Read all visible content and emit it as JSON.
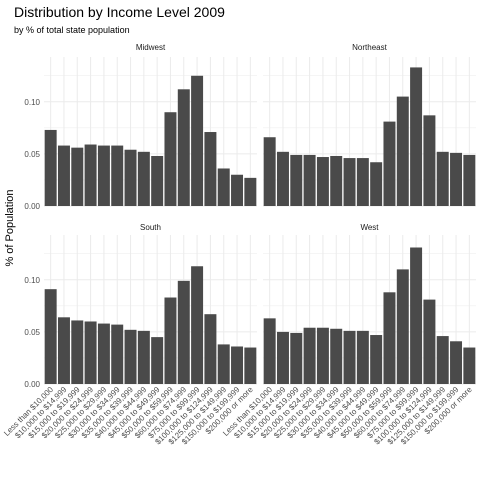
{
  "chart_data": {
    "type": "bar",
    "title": "Distribution by Income Level 2009",
    "subtitle": "by % of total state population",
    "xlabel": "",
    "ylabel": "% of Population",
    "ylim": [
      0,
      0.143
    ],
    "yticks": [
      "0.00",
      "0.05",
      "0.10"
    ],
    "grid": true,
    "bar_color": "#4a4a4a",
    "grid_color": "#ebebeb",
    "categories": [
      "Less than $10,000",
      "$10,000 to $14,999",
      "$15,000 to $19,999",
      "$20,000 to $24,999",
      "$25,000 to $29,999",
      "$30,000 to $34,999",
      "$35,000 to $39,999",
      "$40,000 to $44,999",
      "$45,000 to $49,999",
      "$50,000 to $59,999",
      "$60,000 to $74,999",
      "$75,000 to $99,999",
      "$100,000 to $124,999",
      "$125,000 to $149,999",
      "$150,000 to $199,999",
      "$200,000 or more"
    ],
    "panels": [
      {
        "name": "Midwest",
        "values": [
          0.073,
          0.058,
          0.056,
          0.059,
          0.058,
          0.058,
          0.054,
          0.052,
          0.048,
          0.09,
          0.112,
          0.125,
          0.071,
          0.036,
          0.03,
          0.027
        ]
      },
      {
        "name": "Northeast",
        "values": [
          0.066,
          0.052,
          0.049,
          0.049,
          0.047,
          0.048,
          0.046,
          0.046,
          0.042,
          0.081,
          0.105,
          0.133,
          0.087,
          0.052,
          0.051,
          0.049
        ]
      },
      {
        "name": "South",
        "values": [
          0.091,
          0.064,
          0.061,
          0.06,
          0.058,
          0.057,
          0.052,
          0.051,
          0.045,
          0.083,
          0.099,
          0.113,
          0.067,
          0.038,
          0.036,
          0.035
        ]
      },
      {
        "name": "West",
        "values": [
          0.063,
          0.05,
          0.049,
          0.054,
          0.054,
          0.053,
          0.051,
          0.051,
          0.047,
          0.088,
          0.11,
          0.131,
          0.081,
          0.046,
          0.041,
          0.035
        ]
      }
    ]
  }
}
